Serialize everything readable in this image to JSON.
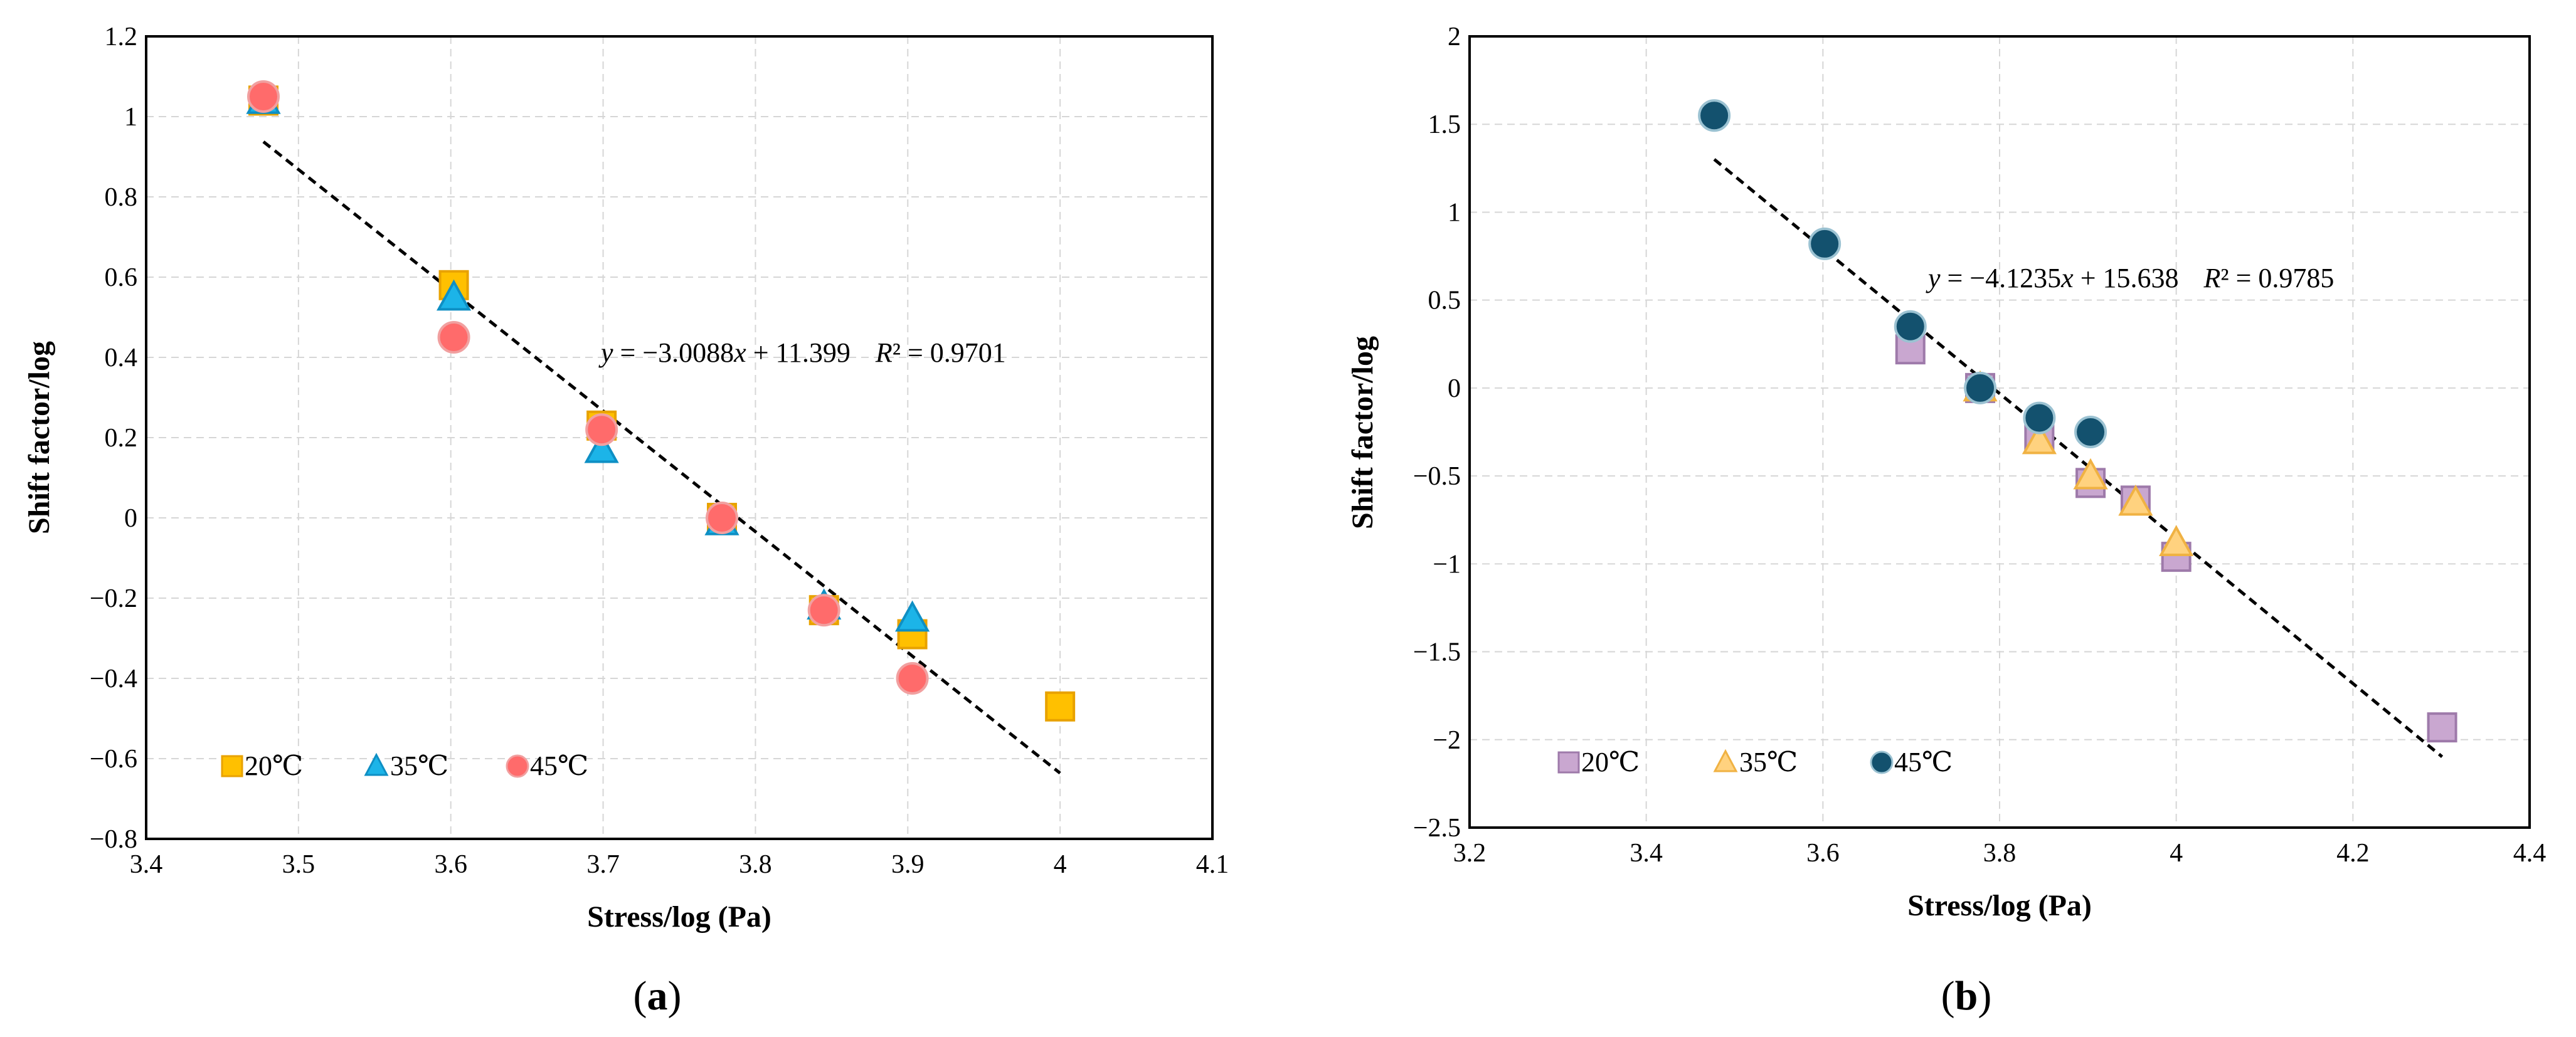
{
  "chart_data": [
    {
      "type": "scatter",
      "panel_label": "(a)",
      "panel_letter": "a",
      "xlabel": "Stress/log (Pa)",
      "ylabel": "Shift factor/log",
      "xlim": [
        3.4,
        4.1
      ],
      "ylim": [
        -0.8,
        1.2
      ],
      "xticks": [
        3.4,
        3.5,
        3.6,
        3.7,
        3.8,
        3.9,
        4.0,
        4.1
      ],
      "yticks": [
        -0.8,
        -0.6,
        -0.4,
        -0.2,
        0,
        0.2,
        0.4,
        0.6,
        0.8,
        1.0,
        1.2
      ],
      "xtick_labels": [
        "3.4",
        "3.5",
        "3.6",
        "3.7",
        "3.8",
        "3.9",
        "4",
        "4.1"
      ],
      "ytick_labels": [
        "−0.8",
        "−0.6",
        "−0.4",
        "−0.2",
        "0",
        "0.2",
        "0.4",
        "0.6",
        "0.8",
        "1",
        "1.2"
      ],
      "grid": true,
      "legend_position": "bottom-left",
      "series": [
        {
          "name": "20℃",
          "marker": "square",
          "color": "#FFC000",
          "edge": "#E8A200",
          "x": [
            3.477,
            3.602,
            3.699,
            3.778,
            3.845,
            3.903,
            4.0
          ],
          "y": [
            1.04,
            0.58,
            0.23,
            0.0,
            -0.23,
            -0.29,
            -0.47
          ]
        },
        {
          "name": "35℃",
          "marker": "triangle",
          "color": "#1CB4E8",
          "edge": "#0E8FC4",
          "x": [
            3.477,
            3.602,
            3.699,
            3.778,
            3.845,
            3.903
          ],
          "y": [
            1.04,
            0.55,
            0.17,
            -0.01,
            -0.22,
            -0.25
          ]
        },
        {
          "name": "45℃",
          "marker": "circle",
          "color": "#FF6B6B",
          "edge": "#F1A0A0",
          "x": [
            3.477,
            3.602,
            3.699,
            3.778,
            3.845,
            3.903
          ],
          "y": [
            1.05,
            0.45,
            0.22,
            0.0,
            -0.23,
            -0.4
          ]
        }
      ],
      "fit": {
        "slope": -3.0088,
        "intercept": 11.399,
        "x_range": [
          3.477,
          4.0
        ],
        "eq_prefix": "y",
        "eq_body": " = −3.0088",
        "eq_var": "x",
        "eq_tail": " + 11.399",
        "r2_label": "R",
        "r2_value": "² = 0.9701"
      }
    },
    {
      "type": "scatter",
      "panel_label": "(b)",
      "panel_letter": "b",
      "xlabel": "Stress/log (Pa)",
      "ylabel": "Shift factor/log",
      "xlim": [
        3.2,
        4.4
      ],
      "ylim": [
        -2.5,
        2.0
      ],
      "xticks": [
        3.2,
        3.4,
        3.6,
        3.8,
        4.0,
        4.2,
        4.4
      ],
      "yticks": [
        -2.5,
        -2,
        -1.5,
        -1,
        -0.5,
        0,
        0.5,
        1,
        1.5,
        2
      ],
      "xtick_labels": [
        "3.2",
        "3.4",
        "3.6",
        "3.8",
        "4",
        "4.2",
        "4.4"
      ],
      "ytick_labels": [
        "−2.5",
        "−2",
        "−1.5",
        "−1",
        "−0.5",
        "0",
        "0.5",
        "1",
        "1.5",
        "2"
      ],
      "grid": true,
      "legend_position": "bottom-left",
      "series": [
        {
          "name": "20℃",
          "marker": "square",
          "color": "#C9A7D0",
          "edge": "#9E7AAA",
          "x": [
            3.699,
            3.778,
            3.845,
            3.903,
            3.954,
            4.0,
            4.301
          ],
          "y": [
            0.22,
            0.0,
            -0.27,
            -0.54,
            -0.64,
            -0.96,
            -1.93
          ]
        },
        {
          "name": "35℃",
          "marker": "triangle",
          "color": "#FFD27F",
          "edge": "#F0B243",
          "x": [
            3.778,
            3.845,
            3.903,
            3.954,
            4.0
          ],
          "y": [
            0.0,
            -0.3,
            -0.5,
            -0.65,
            -0.88
          ]
        },
        {
          "name": "45℃",
          "marker": "circle",
          "color": "#13516E",
          "edge": "#9BC2D2",
          "x": [
            3.477,
            3.602,
            3.699,
            3.778,
            3.845,
            3.903
          ],
          "y": [
            1.55,
            0.82,
            0.35,
            0.0,
            -0.17,
            -0.25
          ]
        }
      ],
      "fit": {
        "slope": -4.1235,
        "intercept": 15.638,
        "x_range": [
          3.477,
          4.301
        ],
        "eq_prefix": "y",
        "eq_body": " = −4.1235",
        "eq_var": "x",
        "eq_tail": " + 15.638",
        "r2_label": "R",
        "r2_value": "² = 0.9785"
      }
    }
  ]
}
